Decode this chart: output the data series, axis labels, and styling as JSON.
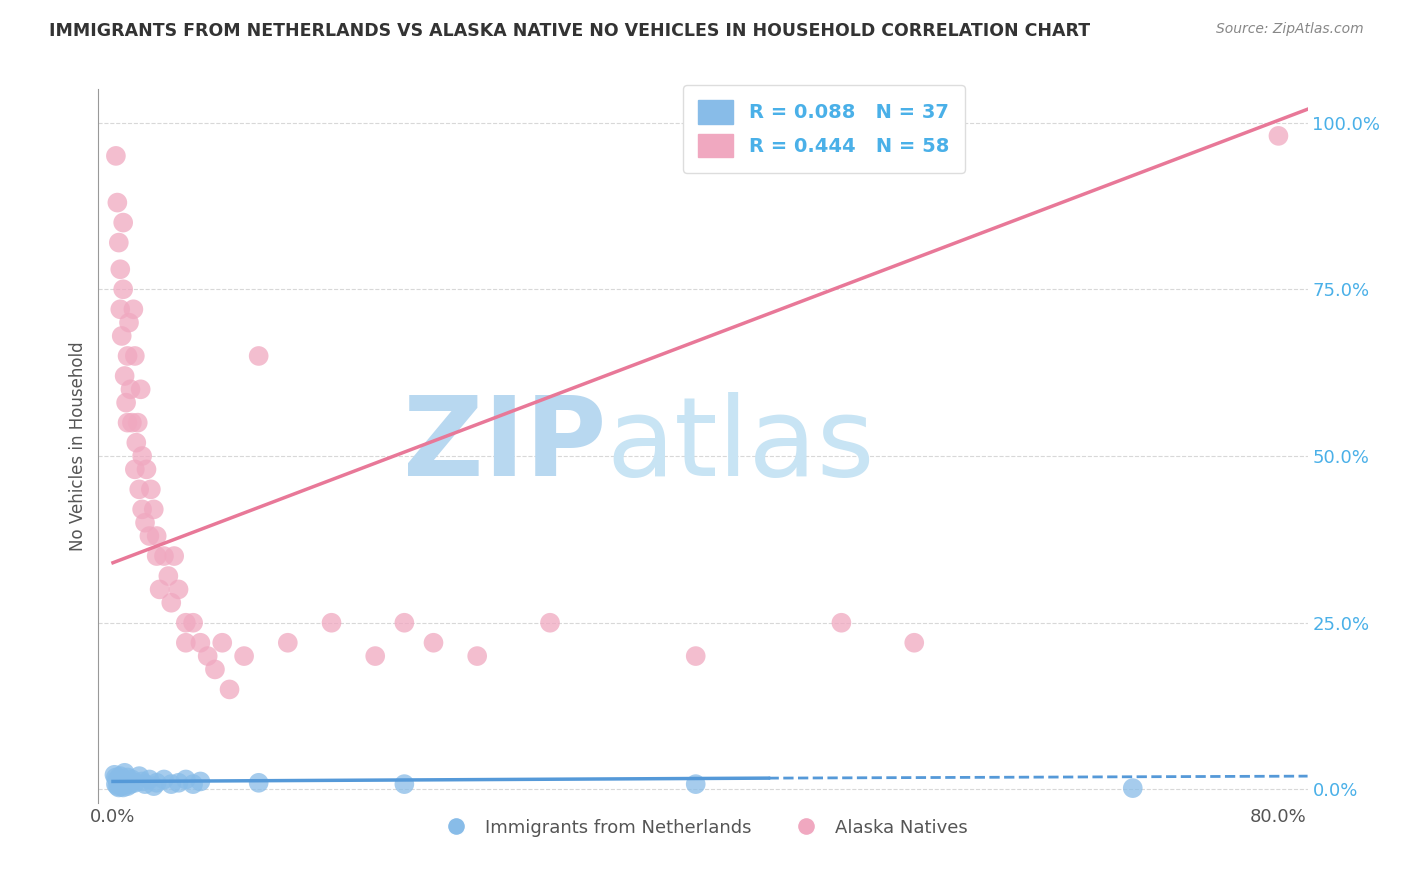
{
  "title": "IMMIGRANTS FROM NETHERLANDS VS ALASKA NATIVE NO VEHICLES IN HOUSEHOLD CORRELATION CHART",
  "source": "Source: ZipAtlas.com",
  "ylabel": "No Vehicles in Household",
  "xlim": [
    -0.01,
    0.82
  ],
  "ylim": [
    -0.02,
    1.05
  ],
  "xticks": [
    0.0,
    0.8
  ],
  "yticks": [
    0.0,
    0.25,
    0.5,
    0.75,
    1.0
  ],
  "xticklabels": [
    "0.0%",
    "80.0%"
  ],
  "yticklabels": [
    "0.0%",
    "25.0%",
    "50.0%",
    "75.0%",
    "100.0%"
  ],
  "legend_entries": [
    {
      "label": "R = 0.088   N = 37",
      "color": "#a8cef0"
    },
    {
      "label": "R = 0.444   N = 58",
      "color": "#f0a8c0"
    }
  ],
  "legend_labels": [
    "Immigrants from Netherlands",
    "Alaska Natives"
  ],
  "watermark": "ZIPatlas",
  "watermark_color": "#cce4f5",
  "blue_scatter": [
    [
      0.001,
      0.022
    ],
    [
      0.002,
      0.018
    ],
    [
      0.002,
      0.008
    ],
    [
      0.003,
      0.015
    ],
    [
      0.003,
      0.005
    ],
    [
      0.004,
      0.012
    ],
    [
      0.004,
      0.003
    ],
    [
      0.005,
      0.02
    ],
    [
      0.005,
      0.007
    ],
    [
      0.006,
      0.015
    ],
    [
      0.006,
      0.005
    ],
    [
      0.007,
      0.01
    ],
    [
      0.007,
      0.003
    ],
    [
      0.008,
      0.025
    ],
    [
      0.008,
      0.008
    ],
    [
      0.009,
      0.012
    ],
    [
      0.01,
      0.018
    ],
    [
      0.01,
      0.005
    ],
    [
      0.012,
      0.008
    ],
    [
      0.013,
      0.015
    ],
    [
      0.015,
      0.01
    ],
    [
      0.018,
      0.02
    ],
    [
      0.02,
      0.012
    ],
    [
      0.022,
      0.008
    ],
    [
      0.025,
      0.015
    ],
    [
      0.028,
      0.005
    ],
    [
      0.03,
      0.01
    ],
    [
      0.035,
      0.015
    ],
    [
      0.04,
      0.008
    ],
    [
      0.045,
      0.01
    ],
    [
      0.05,
      0.015
    ],
    [
      0.055,
      0.008
    ],
    [
      0.06,
      0.012
    ],
    [
      0.1,
      0.01
    ],
    [
      0.2,
      0.008
    ],
    [
      0.4,
      0.008
    ],
    [
      0.7,
      0.002
    ]
  ],
  "pink_scatter": [
    [
      0.002,
      0.95
    ],
    [
      0.003,
      0.88
    ],
    [
      0.004,
      0.82
    ],
    [
      0.005,
      0.78
    ],
    [
      0.005,
      0.72
    ],
    [
      0.006,
      0.68
    ],
    [
      0.007,
      0.85
    ],
    [
      0.007,
      0.75
    ],
    [
      0.008,
      0.62
    ],
    [
      0.009,
      0.58
    ],
    [
      0.01,
      0.65
    ],
    [
      0.01,
      0.55
    ],
    [
      0.011,
      0.7
    ],
    [
      0.012,
      0.6
    ],
    [
      0.013,
      0.55
    ],
    [
      0.014,
      0.72
    ],
    [
      0.015,
      0.65
    ],
    [
      0.015,
      0.48
    ],
    [
      0.016,
      0.52
    ],
    [
      0.017,
      0.55
    ],
    [
      0.018,
      0.45
    ],
    [
      0.019,
      0.6
    ],
    [
      0.02,
      0.5
    ],
    [
      0.02,
      0.42
    ],
    [
      0.022,
      0.4
    ],
    [
      0.023,
      0.48
    ],
    [
      0.025,
      0.38
    ],
    [
      0.026,
      0.45
    ],
    [
      0.028,
      0.42
    ],
    [
      0.03,
      0.35
    ],
    [
      0.03,
      0.38
    ],
    [
      0.032,
      0.3
    ],
    [
      0.035,
      0.35
    ],
    [
      0.038,
      0.32
    ],
    [
      0.04,
      0.28
    ],
    [
      0.042,
      0.35
    ],
    [
      0.045,
      0.3
    ],
    [
      0.05,
      0.25
    ],
    [
      0.05,
      0.22
    ],
    [
      0.055,
      0.25
    ],
    [
      0.06,
      0.22
    ],
    [
      0.065,
      0.2
    ],
    [
      0.07,
      0.18
    ],
    [
      0.075,
      0.22
    ],
    [
      0.08,
      0.15
    ],
    [
      0.09,
      0.2
    ],
    [
      0.1,
      0.65
    ],
    [
      0.12,
      0.22
    ],
    [
      0.15,
      0.25
    ],
    [
      0.18,
      0.2
    ],
    [
      0.2,
      0.25
    ],
    [
      0.22,
      0.22
    ],
    [
      0.25,
      0.2
    ],
    [
      0.3,
      0.25
    ],
    [
      0.4,
      0.2
    ],
    [
      0.5,
      0.25
    ],
    [
      0.55,
      0.22
    ],
    [
      0.8,
      0.98
    ]
  ],
  "blue_line_solid": {
    "x": [
      0.0,
      0.45
    ],
    "y": [
      0.012,
      0.017
    ]
  },
  "blue_line_dashed": {
    "x": [
      0.45,
      0.82
    ],
    "y": [
      0.017,
      0.02
    ]
  },
  "pink_line": {
    "x": [
      0.0,
      0.82
    ],
    "y": [
      0.34,
      1.02
    ]
  },
  "blue_color": "#88bce8",
  "pink_color": "#f0a8c0",
  "line_blue_color": "#5599d8",
  "line_pink_color": "#e87898",
  "title_color": "#333333",
  "axis_color": "#555555",
  "tick_color_y": "#4ab0e8",
  "tick_color_x": "#555555",
  "grid_color": "#d8d8d8",
  "background_color": "#ffffff"
}
